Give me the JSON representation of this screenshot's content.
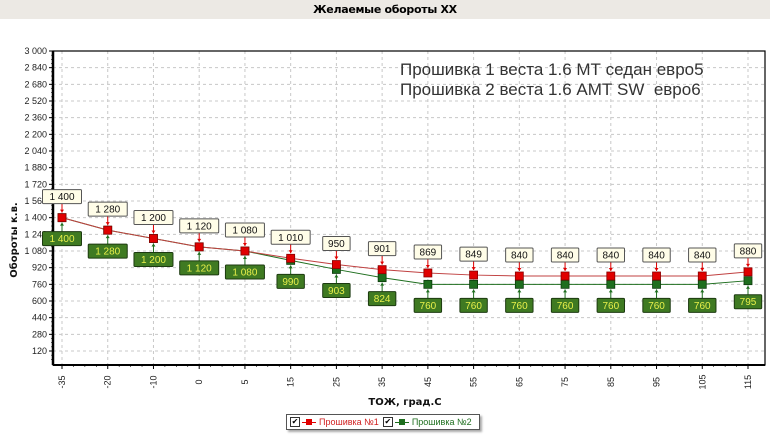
{
  "window": {
    "title": "Желаемые обороты ХХ"
  },
  "annotation": {
    "line1": "Прошивка 1 веста 1.6 МТ седан евро5",
    "line2": "Прошивка 2 веста 1.6 АМТ SW  евро6"
  },
  "axes": {
    "xlabel": "ТОЖ, град.С",
    "ylabel": "Обороты к.в."
  },
  "legend": {
    "items": [
      {
        "label": "Прошивка №1",
        "color": "#e00000",
        "checked": true
      },
      {
        "label": "Прошивка №2",
        "color": "#1e6e1e",
        "checked": true
      }
    ]
  },
  "colors": {
    "series1": "#e00000",
    "series1_line": "#c04040",
    "series2": "#1e6e1e",
    "series2_label_bg": "#3f7a22",
    "series2_label_text": "#e8f04a",
    "series1_label_bg": "#fffde8",
    "grid": "#c8c8c8"
  },
  "chart_data": {
    "type": "line",
    "title": "Желаемые обороты ХХ",
    "xlabel": "ТОЖ, град.С",
    "ylabel": "Обороты к.в.",
    "categories": [
      "-35",
      "-20",
      "-10",
      "0",
      "5",
      "15",
      "25",
      "35",
      "45",
      "55",
      "65",
      "75",
      "85",
      "95",
      "105",
      "115"
    ],
    "series": [
      {
        "name": "Прошивка №1",
        "values": [
          1400,
          1280,
          1200,
          1120,
          1080,
          1010,
          950,
          901,
          869,
          849,
          840,
          840,
          840,
          840,
          840,
          880
        ]
      },
      {
        "name": "Прошивка №2",
        "values": [
          1400,
          1280,
          1200,
          1120,
          1080,
          990,
          903,
          824,
          760,
          760,
          760,
          760,
          760,
          760,
          760,
          795
        ]
      }
    ],
    "yticks": [
      "3 000",
      "2 840",
      "2 680",
      "2 520",
      "2 360",
      "2 200",
      "2 040",
      "1 880",
      "1 720",
      "1 560",
      "1 400",
      "1 240",
      "1 080",
      "920",
      "760",
      "600",
      "440",
      "280",
      "120"
    ],
    "ylim": [
      0,
      3000
    ],
    "grid": true,
    "legend_position": "bottom",
    "annotations": [
      "Прошивка 1 веста 1.6 МТ седан евро5",
      "Прошивка 2 веста 1.6 АМТ SW  евро6"
    ]
  }
}
